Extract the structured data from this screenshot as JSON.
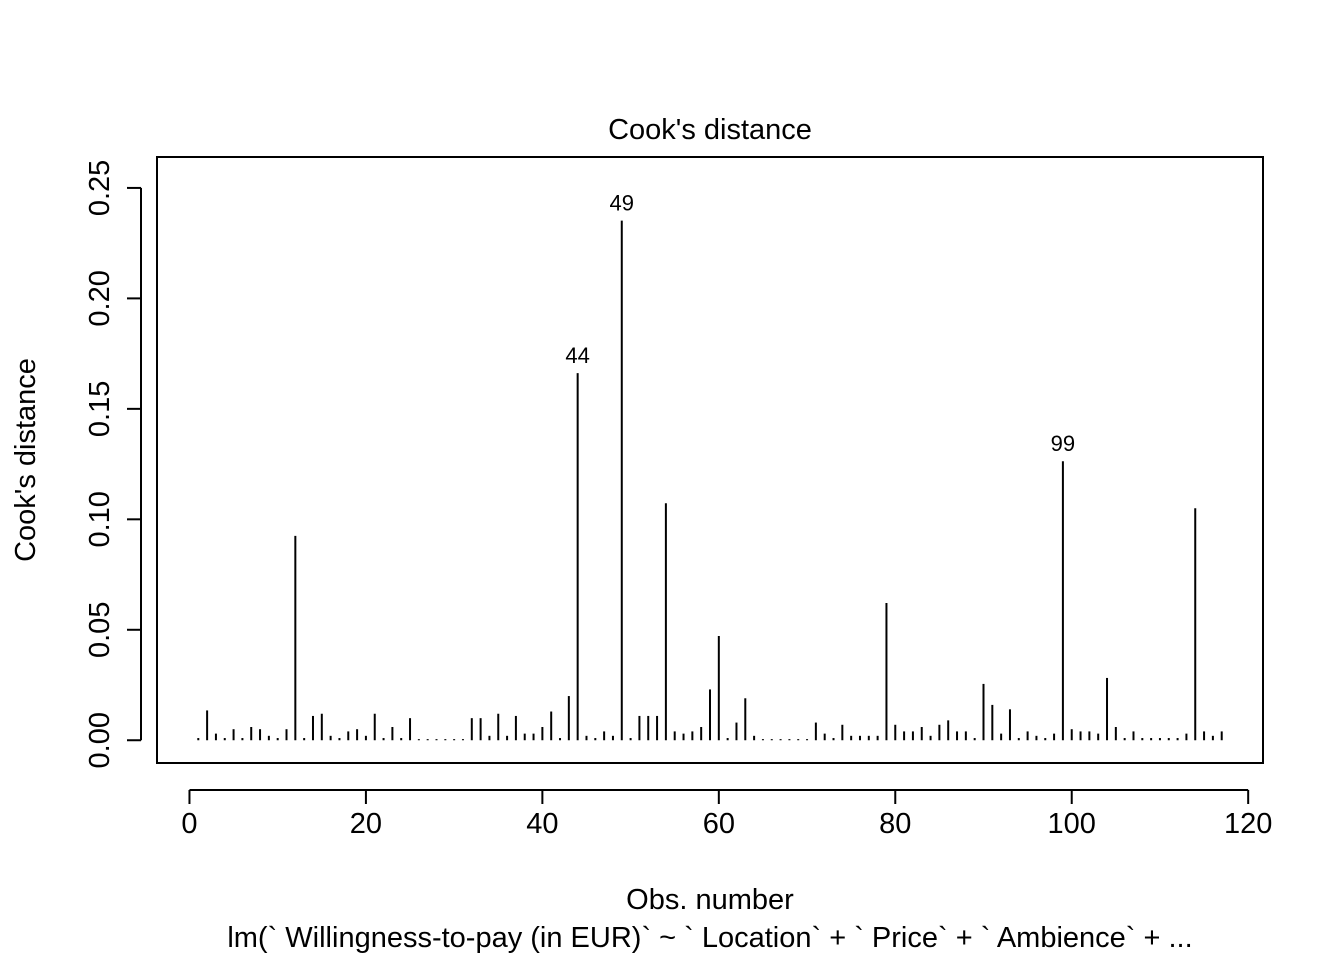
{
  "chart_data": {
    "type": "bar",
    "title": "Cook's distance",
    "xlabel": "Obs. number",
    "ylabel": "Cook's distance",
    "subtitle": "lm(` Willingness-to-pay (in EUR)` ~ ` Location` + ` Price` + ` Ambience` +  ...",
    "xlim": [
      -3.68,
      121.68
    ],
    "ylim": [
      -0.0103,
      0.264
    ],
    "xticks": [
      0,
      20,
      40,
      60,
      80,
      100,
      120
    ],
    "xtick_labels": [
      "0",
      "20",
      "40",
      "60",
      "80",
      "100",
      "120"
    ],
    "yticks": [
      0,
      0.05,
      0.1,
      0.15,
      0.2,
      0.25
    ],
    "ytick_labels": [
      "0.00",
      "0.05",
      "0.10",
      "0.15",
      "0.20",
      "0.25"
    ],
    "x": [
      1,
      2,
      3,
      4,
      5,
      6,
      7,
      8,
      9,
      10,
      11,
      12,
      13,
      14,
      15,
      16,
      17,
      18,
      19,
      20,
      21,
      22,
      23,
      24,
      25,
      26,
      27,
      28,
      29,
      30,
      31,
      32,
      33,
      34,
      35,
      36,
      37,
      38,
      39,
      40,
      41,
      42,
      43,
      44,
      45,
      46,
      47,
      48,
      49,
      50,
      51,
      52,
      53,
      54,
      55,
      56,
      57,
      58,
      59,
      60,
      61,
      62,
      63,
      64,
      65,
      66,
      67,
      68,
      69,
      70,
      71,
      72,
      73,
      74,
      75,
      76,
      77,
      78,
      79,
      80,
      81,
      82,
      83,
      84,
      85,
      86,
      87,
      88,
      89,
      90,
      91,
      92,
      93,
      94,
      95,
      96,
      97,
      98,
      99,
      100,
      101,
      102,
      103,
      104,
      105,
      106,
      107,
      108,
      109,
      110,
      111,
      112,
      113,
      114,
      115,
      116,
      117
    ],
    "values": [
      0.001,
      0.0135,
      0.003,
      0.001,
      0.005,
      0.001,
      0.006,
      0.005,
      0.002,
      0.001,
      0.005,
      0.0925,
      0.001,
      0.011,
      0.012,
      0.002,
      0.001,
      0.004,
      0.005,
      0.002,
      0.012,
      0.001,
      0.006,
      0.001,
      0.01,
      0.0005,
      0.0005,
      0.0005,
      0.0005,
      0.0005,
      0.0005,
      0.01,
      0.01,
      0.002,
      0.012,
      0.002,
      0.011,
      0.003,
      0.003,
      0.006,
      0.013,
      0.001,
      0.02,
      0.1662,
      0.002,
      0.001,
      0.004,
      0.002,
      0.2352,
      0.001,
      0.011,
      0.011,
      0.011,
      0.1073,
      0.004,
      0.003,
      0.004,
      0.006,
      0.023,
      0.0472,
      0.001,
      0.008,
      0.019,
      0.002,
      0.0005,
      0.0005,
      0.0005,
      0.0005,
      0.0005,
      0.0005,
      0.008,
      0.003,
      0.001,
      0.007,
      0.002,
      0.002,
      0.002,
      0.002,
      0.0621,
      0.007,
      0.004,
      0.004,
      0.006,
      0.002,
      0.007,
      0.009,
      0.004,
      0.004,
      0.001,
      0.0255,
      0.016,
      0.003,
      0.014,
      0.001,
      0.004,
      0.002,
      0.001,
      0.003,
      0.1263,
      0.005,
      0.004,
      0.004,
      0.003,
      0.0282,
      0.006,
      0.001,
      0.004,
      0.001,
      0.001,
      0.001,
      0.001,
      0.001,
      0.003,
      0.105,
      0.004,
      0.002,
      0.004
    ],
    "labeled_points": [
      {
        "x": 44,
        "label": "44"
      },
      {
        "x": 49,
        "label": "49"
      },
      {
        "x": 99,
        "label": "99"
      }
    ]
  }
}
